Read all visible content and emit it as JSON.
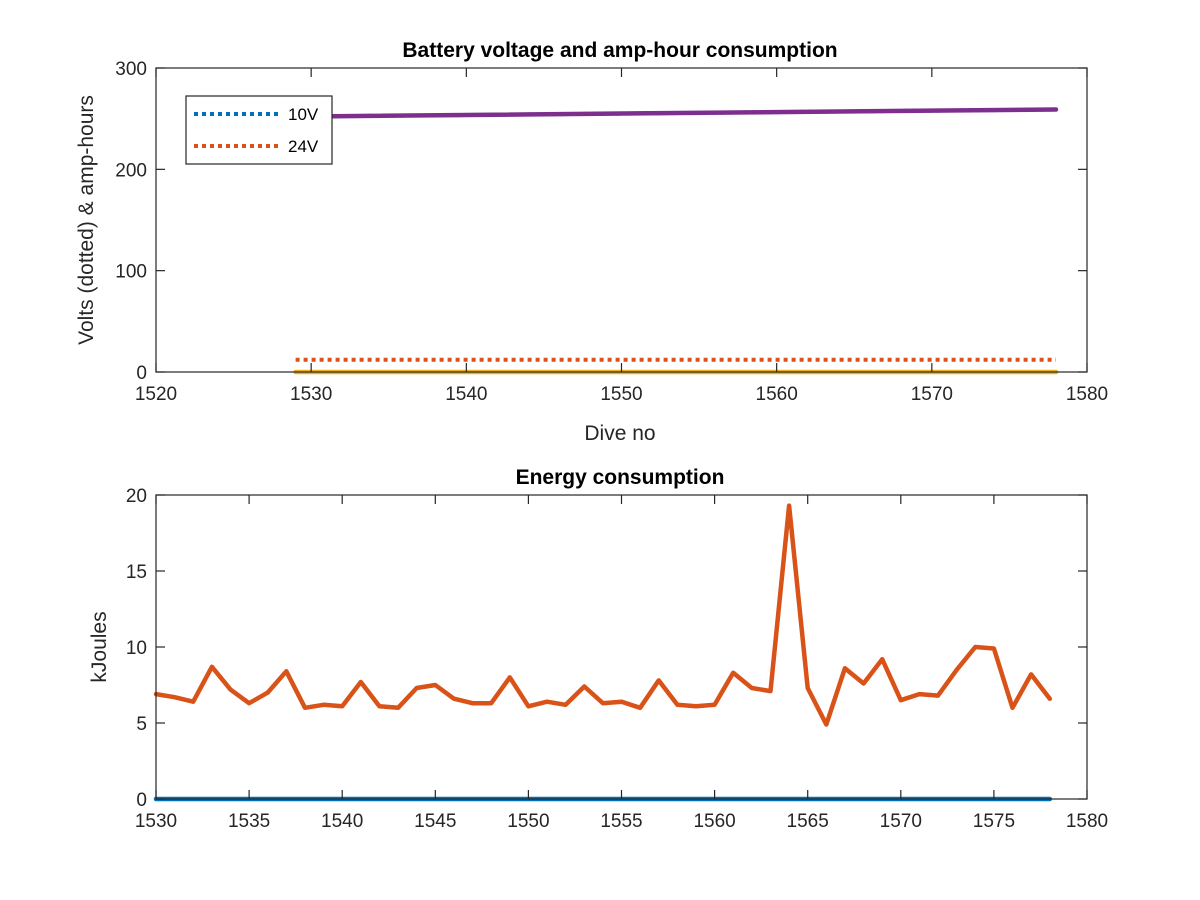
{
  "chart_data": [
    {
      "type": "line",
      "title": "Battery voltage and amp-hour consumption",
      "xlabel": "Dive no",
      "ylabel": "Volts (dotted) & amp-hours",
      "xlim": [
        1520,
        1580
      ],
      "ylim": [
        0,
        300
      ],
      "xticks": [
        "1520",
        "1530",
        "1540",
        "1550",
        "1560",
        "1570",
        "1580"
      ],
      "yticks": [
        "0",
        "100",
        "200",
        "300"
      ],
      "grid": false,
      "legend": {
        "placement": "top-left",
        "entries": [
          "10V",
          "24V"
        ]
      },
      "series": [
        {
          "name": "10V",
          "style": "dotted",
          "color": "#0072BD",
          "x": [
            1529,
            1578
          ],
          "y": [
            252,
            259
          ]
        },
        {
          "name": "24V",
          "style": "dotted",
          "color": "#D95319",
          "x": [
            1529,
            1578
          ],
          "y": [
            12,
            12
          ]
        },
        {
          "style": "solid",
          "color": "#EDB120",
          "x": [
            1529,
            1578
          ],
          "y": [
            0,
            0
          ]
        },
        {
          "style": "solid",
          "color": "#7E2F8E",
          "x": [
            1529,
            1578
          ],
          "y": [
            252,
            259
          ]
        }
      ]
    },
    {
      "type": "line",
      "title": "Energy consumption",
      "xlabel": "",
      "ylabel": "kJoules",
      "xlim": [
        1530,
        1580
      ],
      "ylim": [
        0,
        20
      ],
      "xticks": [
        "1530",
        "1535",
        "1540",
        "1545",
        "1550",
        "1555",
        "1560",
        "1565",
        "1570",
        "1575",
        "1580"
      ],
      "yticks": [
        "0",
        "5",
        "10",
        "15",
        "20"
      ],
      "grid": false,
      "series": [
        {
          "style": "solid",
          "color": "#0072BD",
          "x": [
            1530,
            1578
          ],
          "y": [
            0,
            0
          ]
        },
        {
          "style": "solid",
          "color": "#D95319",
          "x": [
            1530,
            1531,
            1532,
            1533,
            1534,
            1535,
            1536,
            1537,
            1538,
            1539,
            1540,
            1541,
            1542,
            1543,
            1544,
            1545,
            1546,
            1547,
            1548,
            1549,
            1550,
            1551,
            1552,
            1553,
            1554,
            1555,
            1556,
            1557,
            1558,
            1559,
            1560,
            1561,
            1562,
            1563,
            1564,
            1565,
            1566,
            1567,
            1568,
            1569,
            1570,
            1571,
            1572,
            1573,
            1574,
            1575,
            1576,
            1577,
            1578
          ],
          "y": [
            6.9,
            6.7,
            6.4,
            8.7,
            7.2,
            6.3,
            7.0,
            8.4,
            6.0,
            6.2,
            6.1,
            7.7,
            6.1,
            6.0,
            7.3,
            7.5,
            6.6,
            6.3,
            6.3,
            8.0,
            6.1,
            6.4,
            6.2,
            7.4,
            6.3,
            6.4,
            6.0,
            7.8,
            6.2,
            6.1,
            6.2,
            8.3,
            7.3,
            7.1,
            19.3,
            7.3,
            4.9,
            8.6,
            7.6,
            9.2,
            6.5,
            6.9,
            6.8,
            8.5,
            10.0,
            9.9,
            6.0,
            8.2,
            6.6
          ]
        }
      ]
    }
  ]
}
